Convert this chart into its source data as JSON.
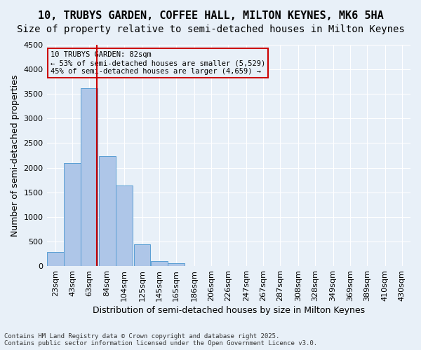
{
  "title_line1": "10, TRUBYS GARDEN, COFFEE HALL, MILTON KEYNES, MK6 5HA",
  "title_line2": "Size of property relative to semi-detached houses in Milton Keynes",
  "xlabel": "Distribution of semi-detached houses by size in Milton Keynes",
  "ylabel": "Number of semi-detached properties",
  "footnote": "Contains HM Land Registry data © Crown copyright and database right 2025.\nContains public sector information licensed under the Open Government Licence v3.0.",
  "bin_labels": [
    "23sqm",
    "43sqm",
    "63sqm",
    "84sqm",
    "104sqm",
    "125sqm",
    "145sqm",
    "165sqm",
    "186sqm",
    "206sqm",
    "226sqm",
    "247sqm",
    "267sqm",
    "287sqm",
    "308sqm",
    "328sqm",
    "349sqm",
    "369sqm",
    "389sqm",
    "410sqm",
    "430sqm"
  ],
  "bin_edges": [
    23,
    43,
    63,
    84,
    104,
    125,
    145,
    165,
    186,
    206,
    226,
    247,
    267,
    287,
    308,
    328,
    349,
    369,
    389,
    410,
    430
  ],
  "bar_values": [
    280,
    2100,
    3620,
    2230,
    1640,
    440,
    95,
    55,
    0,
    0,
    0,
    0,
    0,
    0,
    0,
    0,
    0,
    0,
    0,
    0
  ],
  "bar_color": "#aec6e8",
  "bar_edge_color": "#5a9fd4",
  "property_value": 82,
  "vline_x": 82,
  "vline_color": "#cc0000",
  "annotation_title": "10 TRUBYS GARDEN: 82sqm",
  "annotation_line2": "← 53% of semi-detached houses are smaller (5,529)",
  "annotation_line3": "45% of semi-detached houses are larger (4,659) →",
  "annotation_box_color": "#cc0000",
  "ylim": [
    0,
    4500
  ],
  "yticks": [
    0,
    500,
    1000,
    1500,
    2000,
    2500,
    3000,
    3500,
    4000,
    4500
  ],
  "bg_color": "#e8f0f8",
  "grid_color": "#ffffff",
  "title_fontsize": 11,
  "subtitle_fontsize": 10,
  "axis_label_fontsize": 9,
  "tick_fontsize": 8
}
